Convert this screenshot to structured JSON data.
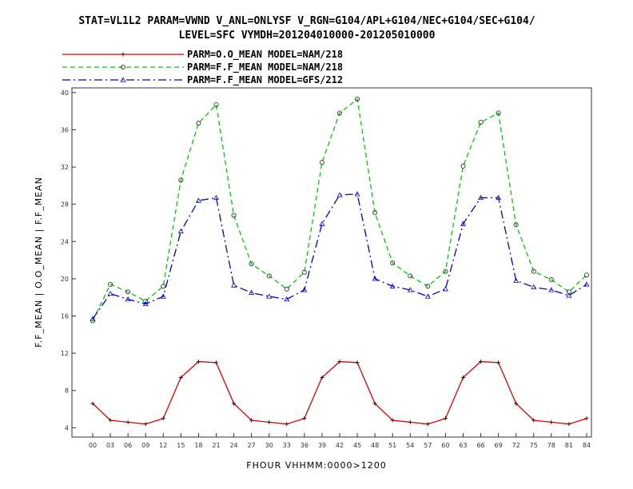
{
  "chart_data": {
    "type": "line",
    "title_lines": [
      "STAT=VL1L2 PARAM=VWND V_ANL=ONLYSF V_RGN=G104/APL+G104/NEC+G104/SEC+G104/",
      "LEVEL=SFC VYMDH=201204010000-201205010000"
    ],
    "xlabel": "FHOUR VHHMM:0000>1200",
    "ylabel": "F.F_MEAN | O.O_MEAN | F.F_MEAN",
    "categories": [
      "00",
      "03",
      "06",
      "09",
      "12",
      "15",
      "18",
      "21",
      "24",
      "27",
      "30",
      "33",
      "36",
      "39",
      "42",
      "45",
      "48",
      "51",
      "54",
      "57",
      "60",
      "63",
      "66",
      "69",
      "72",
      "75",
      "78",
      "81",
      "84"
    ],
    "ylim": [
      3,
      40.5
    ],
    "yticks": [
      4,
      8,
      12,
      16,
      20,
      24,
      28,
      32,
      36,
      40
    ],
    "grid": false,
    "legend_position": "top",
    "series": [
      {
        "name": "PARM=O.O_MEAN MODEL=NAM/218",
        "color": "#e00000",
        "dash": "solid",
        "marker": "plus",
        "values": [
          6.6,
          4.8,
          4.6,
          4.4,
          5.0,
          9.4,
          11.1,
          11.0,
          6.6,
          4.8,
          4.6,
          4.4,
          5.0,
          9.4,
          11.1,
          11.0,
          6.6,
          4.8,
          4.6,
          4.4,
          5.0,
          9.4,
          11.1,
          11.0,
          6.6,
          4.8,
          4.6,
          4.4,
          5.0
        ]
      },
      {
        "name": "PARM=F.F_MEAN MODEL=NAM/218",
        "color": "#00cc00",
        "dash": "dashed",
        "marker": "circle",
        "values": [
          15.5,
          19.4,
          18.6,
          17.6,
          19.2,
          30.6,
          36.7,
          38.7,
          26.8,
          21.6,
          20.3,
          18.9,
          20.7,
          32.5,
          37.8,
          39.3,
          27.1,
          21.7,
          20.3,
          19.2,
          20.8,
          32.1,
          36.8,
          37.8,
          25.8,
          20.8,
          19.9,
          18.6,
          20.4
        ]
      },
      {
        "name": "PARM=F.F_MEAN MODEL=GFS/212",
        "color": "#0000cc",
        "dash": "dashdot",
        "marker": "triangle",
        "values": [
          15.7,
          18.4,
          17.8,
          17.3,
          18.1,
          25.1,
          28.4,
          28.7,
          19.3,
          18.5,
          18.1,
          17.8,
          18.8,
          25.9,
          29.0,
          29.1,
          20.0,
          19.2,
          18.8,
          18.1,
          18.9,
          25.9,
          28.7,
          28.7,
          19.8,
          19.1,
          18.8,
          18.2,
          19.4
        ]
      }
    ]
  }
}
